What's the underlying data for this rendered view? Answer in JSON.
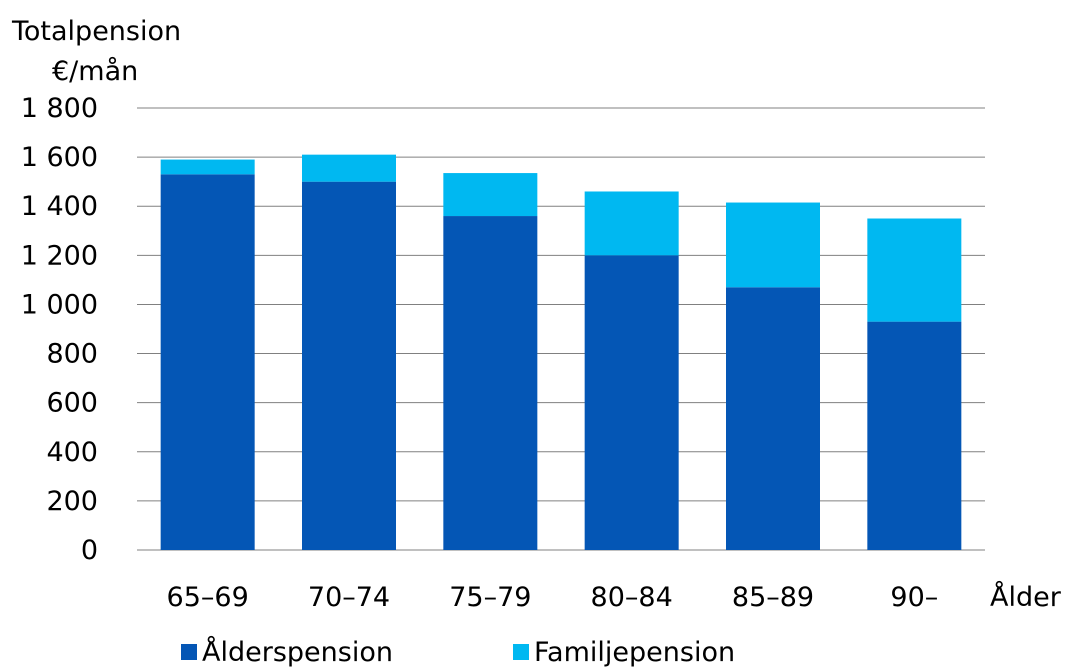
{
  "chart_data": {
    "type": "bar",
    "stacked": true,
    "ylabel_line1": "Totalpension",
    "ylabel_line2": "€/mån",
    "xlabel": "Ålder",
    "ylim": [
      0,
      1800
    ],
    "yticks": [
      0,
      200,
      400,
      600,
      800,
      1000,
      1200,
      1400,
      1600,
      1800
    ],
    "ytick_labels": [
      "0",
      "200",
      "400",
      "600",
      "800",
      "1 000",
      "1 200",
      "1 400",
      "1 600",
      "1 800"
    ],
    "categories": [
      "65–69",
      "70–74",
      "75–79",
      "80–84",
      "85–89",
      "90–"
    ],
    "grid": true,
    "legend_position": "bottom",
    "series": [
      {
        "name": "Ålderspension",
        "color": "#0456b5",
        "values": [
          1530,
          1500,
          1360,
          1200,
          1070,
          930
        ]
      },
      {
        "name": "Familjepension",
        "color": "#00b8f1",
        "values": [
          60,
          110,
          175,
          260,
          345,
          420
        ]
      }
    ]
  }
}
